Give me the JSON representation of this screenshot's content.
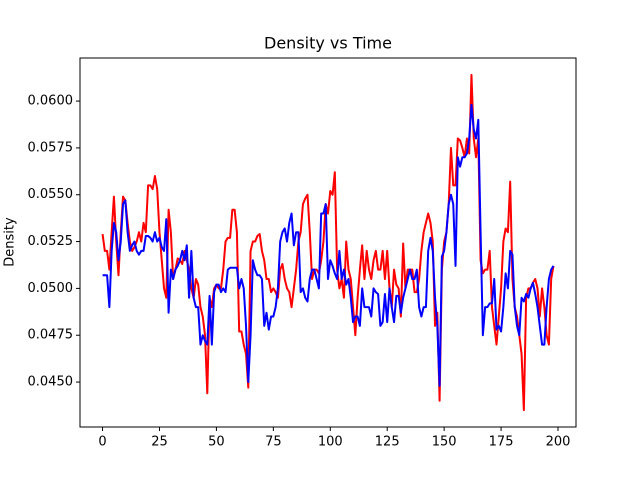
{
  "chart_data": {
    "type": "line",
    "title": "Density vs Time",
    "y_label": "Density",
    "x": [
      0,
      1,
      2,
      3,
      4,
      5,
      6,
      7,
      8,
      9,
      10,
      11,
      12,
      13,
      14,
      15,
      16,
      17,
      18,
      19,
      20,
      21,
      22,
      23,
      24,
      25,
      26,
      27,
      28,
      29,
      30,
      31,
      32,
      33,
      34,
      35,
      36,
      37,
      38,
      39,
      40,
      41,
      42,
      43,
      44,
      45,
      46,
      47,
      48,
      49,
      50,
      51,
      52,
      53,
      54,
      55,
      56,
      57,
      58,
      59,
      60,
      61,
      62,
      63,
      64,
      65,
      66,
      67,
      68,
      69,
      70,
      71,
      72,
      73,
      74,
      75,
      76,
      77,
      78,
      79,
      80,
      81,
      82,
      83,
      84,
      85,
      86,
      87,
      88,
      89,
      90,
      91,
      92,
      93,
      94,
      95,
      96,
      97,
      98,
      99,
      100,
      101,
      102,
      103,
      104,
      105,
      106,
      107,
      108,
      109,
      110,
      111,
      112,
      113,
      114,
      115,
      116,
      117,
      118,
      119,
      120,
      121,
      122,
      123,
      124,
      125,
      126,
      127,
      128,
      129,
      130,
      131,
      132,
      133,
      134,
      135,
      136,
      137,
      138,
      139,
      140,
      141,
      142,
      143,
      144,
      145,
      146,
      147,
      148,
      149,
      150,
      151,
      152,
      153,
      154,
      155,
      156,
      157,
      158,
      159,
      160,
      161,
      162,
      163,
      164,
      165,
      166,
      167,
      168,
      169,
      170,
      171,
      172,
      173,
      174,
      175,
      176,
      177,
      178,
      179,
      180,
      181,
      182,
      183,
      184,
      185,
      186,
      187,
      188,
      189,
      190,
      191,
      192,
      193,
      194,
      195,
      196,
      197,
      198
    ],
    "series": [
      {
        "color": "#ff0000",
        "values": [
          0.0529,
          0.052,
          0.052,
          0.051,
          0.053,
          0.0549,
          0.0525,
          0.0507,
          0.053,
          0.0549,
          0.0547,
          0.0535,
          0.0525,
          0.052,
          0.0522,
          0.0525,
          0.053,
          0.0525,
          0.0535,
          0.053,
          0.0555,
          0.0555,
          0.0553,
          0.056,
          0.0553,
          0.053,
          0.0515,
          0.05,
          0.0495,
          0.0542,
          0.053,
          0.0505,
          0.051,
          0.0516,
          0.0515,
          0.0513,
          0.052,
          0.0515,
          0.051,
          0.05,
          0.0495,
          0.0505,
          0.0502,
          0.049,
          0.0485,
          0.0475,
          0.0444,
          0.0495,
          0.049,
          0.05,
          0.0502,
          0.05,
          0.05,
          0.051,
          0.0525,
          0.0527,
          0.0527,
          0.0542,
          0.0542,
          0.053,
          0.0477,
          0.0477,
          0.047,
          0.0465,
          0.0447,
          0.052,
          0.0525,
          0.0525,
          0.0528,
          0.0529,
          0.052,
          0.0515,
          0.0505,
          0.0505,
          0.0498,
          0.05,
          0.0498,
          0.0495,
          0.051,
          0.0513,
          0.0505,
          0.05,
          0.0498,
          0.049,
          0.05,
          0.051,
          0.0525,
          0.053,
          0.0545,
          0.0548,
          0.055,
          0.053,
          0.0505,
          0.051,
          0.051,
          0.0508,
          0.0515,
          0.0525,
          0.0545,
          0.054,
          0.0552,
          0.055,
          0.0562,
          0.051,
          0.05,
          0.0505,
          0.0495,
          0.0525,
          0.051,
          0.0505,
          0.049,
          0.0475,
          0.0495,
          0.051,
          0.0523,
          0.0505,
          0.052,
          0.051,
          0.0505,
          0.0515,
          0.052,
          0.051,
          0.051,
          0.052,
          0.0505,
          0.052,
          0.05,
          0.049,
          0.051,
          0.0502,
          0.05,
          0.0485,
          0.0524,
          0.05,
          0.051,
          0.051,
          0.051,
          0.0498,
          0.0498,
          0.0505,
          0.052,
          0.053,
          0.0535,
          0.054,
          0.0535,
          0.0525,
          0.048,
          0.0487,
          0.044,
          0.051,
          0.0525,
          0.053,
          0.0545,
          0.0575,
          0.0555,
          0.0555,
          0.058,
          0.0579,
          0.0575,
          0.057,
          0.058,
          0.0572,
          0.0614,
          0.058,
          0.057,
          0.058,
          0.0515,
          0.0508,
          0.051,
          0.051,
          0.052,
          0.049,
          0.048,
          0.047,
          0.0485,
          0.05,
          0.0525,
          0.0532,
          0.053,
          0.0557,
          0.0505,
          0.049,
          0.0485,
          0.0475,
          0.0465,
          0.0435,
          0.0495,
          0.05,
          0.05,
          0.0503,
          0.0505,
          0.05,
          0.0485,
          0.05,
          0.049,
          0.0475,
          0.047,
          0.0505,
          0.0512
        ]
      },
      {
        "color": "#0000ff",
        "values": [
          0.0507,
          0.0507,
          0.0507,
          0.049,
          0.052,
          0.0535,
          0.053,
          0.0515,
          0.0525,
          0.0545,
          0.0547,
          0.053,
          0.052,
          0.0523,
          0.0525,
          0.052,
          0.0518,
          0.052,
          0.052,
          0.0528,
          0.0528,
          0.0527,
          0.0525,
          0.053,
          0.0525,
          0.0527,
          0.0522,
          0.052,
          0.0537,
          0.0487,
          0.051,
          0.0505,
          0.051,
          0.0512,
          0.0515,
          0.052,
          0.0515,
          0.0523,
          0.0495,
          0.052,
          0.0495,
          0.049,
          0.049,
          0.047,
          0.0475,
          0.0472,
          0.047,
          0.0496,
          0.047,
          0.0498,
          0.0502,
          0.0502,
          0.0498,
          0.05,
          0.0498,
          0.051,
          0.0511,
          0.0511,
          0.0511,
          0.0511,
          0.05,
          0.0505,
          0.05,
          0.048,
          0.045,
          0.0475,
          0.0515,
          0.051,
          0.0507,
          0.0507,
          0.0505,
          0.048,
          0.0487,
          0.0478,
          0.0485,
          0.0485,
          0.049,
          0.05,
          0.0525,
          0.053,
          0.0532,
          0.0525,
          0.0535,
          0.054,
          0.0523,
          0.053,
          0.053,
          0.0498,
          0.05,
          0.0495,
          0.0493,
          0.0505,
          0.051,
          0.051,
          0.0505,
          0.05,
          0.054,
          0.054,
          0.0545,
          0.0505,
          0.0515,
          0.0512,
          0.0508,
          0.0505,
          0.052,
          0.0505,
          0.051,
          0.0502,
          0.0505,
          0.0495,
          0.0482,
          0.0485,
          0.0485,
          0.048,
          0.05,
          0.049,
          0.049,
          0.049,
          0.0485,
          0.05,
          0.0498,
          0.0497,
          0.048,
          0.0482,
          0.0497,
          0.0482,
          0.05,
          0.049,
          0.0482,
          0.0496,
          0.0496,
          0.0487,
          0.0495,
          0.05,
          0.0505,
          0.051,
          0.0505,
          0.0505,
          0.051,
          0.049,
          0.0485,
          0.049,
          0.049,
          0.052,
          0.0527,
          0.052,
          0.0495,
          0.048,
          0.0448,
          0.0517,
          0.052,
          0.053,
          0.0545,
          0.055,
          0.0545,
          0.0512,
          0.057,
          0.0565,
          0.057,
          0.057,
          0.0572,
          0.058,
          0.0598,
          0.0585,
          0.058,
          0.059,
          0.053,
          0.0475,
          0.049,
          0.049,
          0.0492,
          0.0492,
          0.0505,
          0.0478,
          0.048,
          0.0477,
          0.049,
          0.0508,
          0.05,
          0.052,
          0.0518,
          0.049,
          0.048,
          0.0475,
          0.0495,
          0.0493,
          0.0497,
          0.0495,
          0.05,
          0.0503,
          0.0497,
          0.049,
          0.048,
          0.047,
          0.047,
          0.049,
          0.0505,
          0.051,
          0.0512
        ]
      }
    ],
    "xlim": [
      -9.9,
      207.9
    ],
    "xticks": [
      0,
      25,
      50,
      75,
      100,
      125,
      150,
      175,
      200
    ],
    "ylim": [
      0.0426,
      0.0623
    ],
    "yticks": [
      {
        "value": 0.045,
        "label": "0.0450"
      },
      {
        "value": 0.0475,
        "label": "0.0475"
      },
      {
        "value": 0.05,
        "label": "0.0500"
      },
      {
        "value": 0.0525,
        "label": "0.0525"
      },
      {
        "value": 0.055,
        "label": "0.0550"
      },
      {
        "value": 0.0575,
        "label": "0.0575"
      },
      {
        "value": 0.06,
        "label": "0.0600"
      }
    ]
  }
}
